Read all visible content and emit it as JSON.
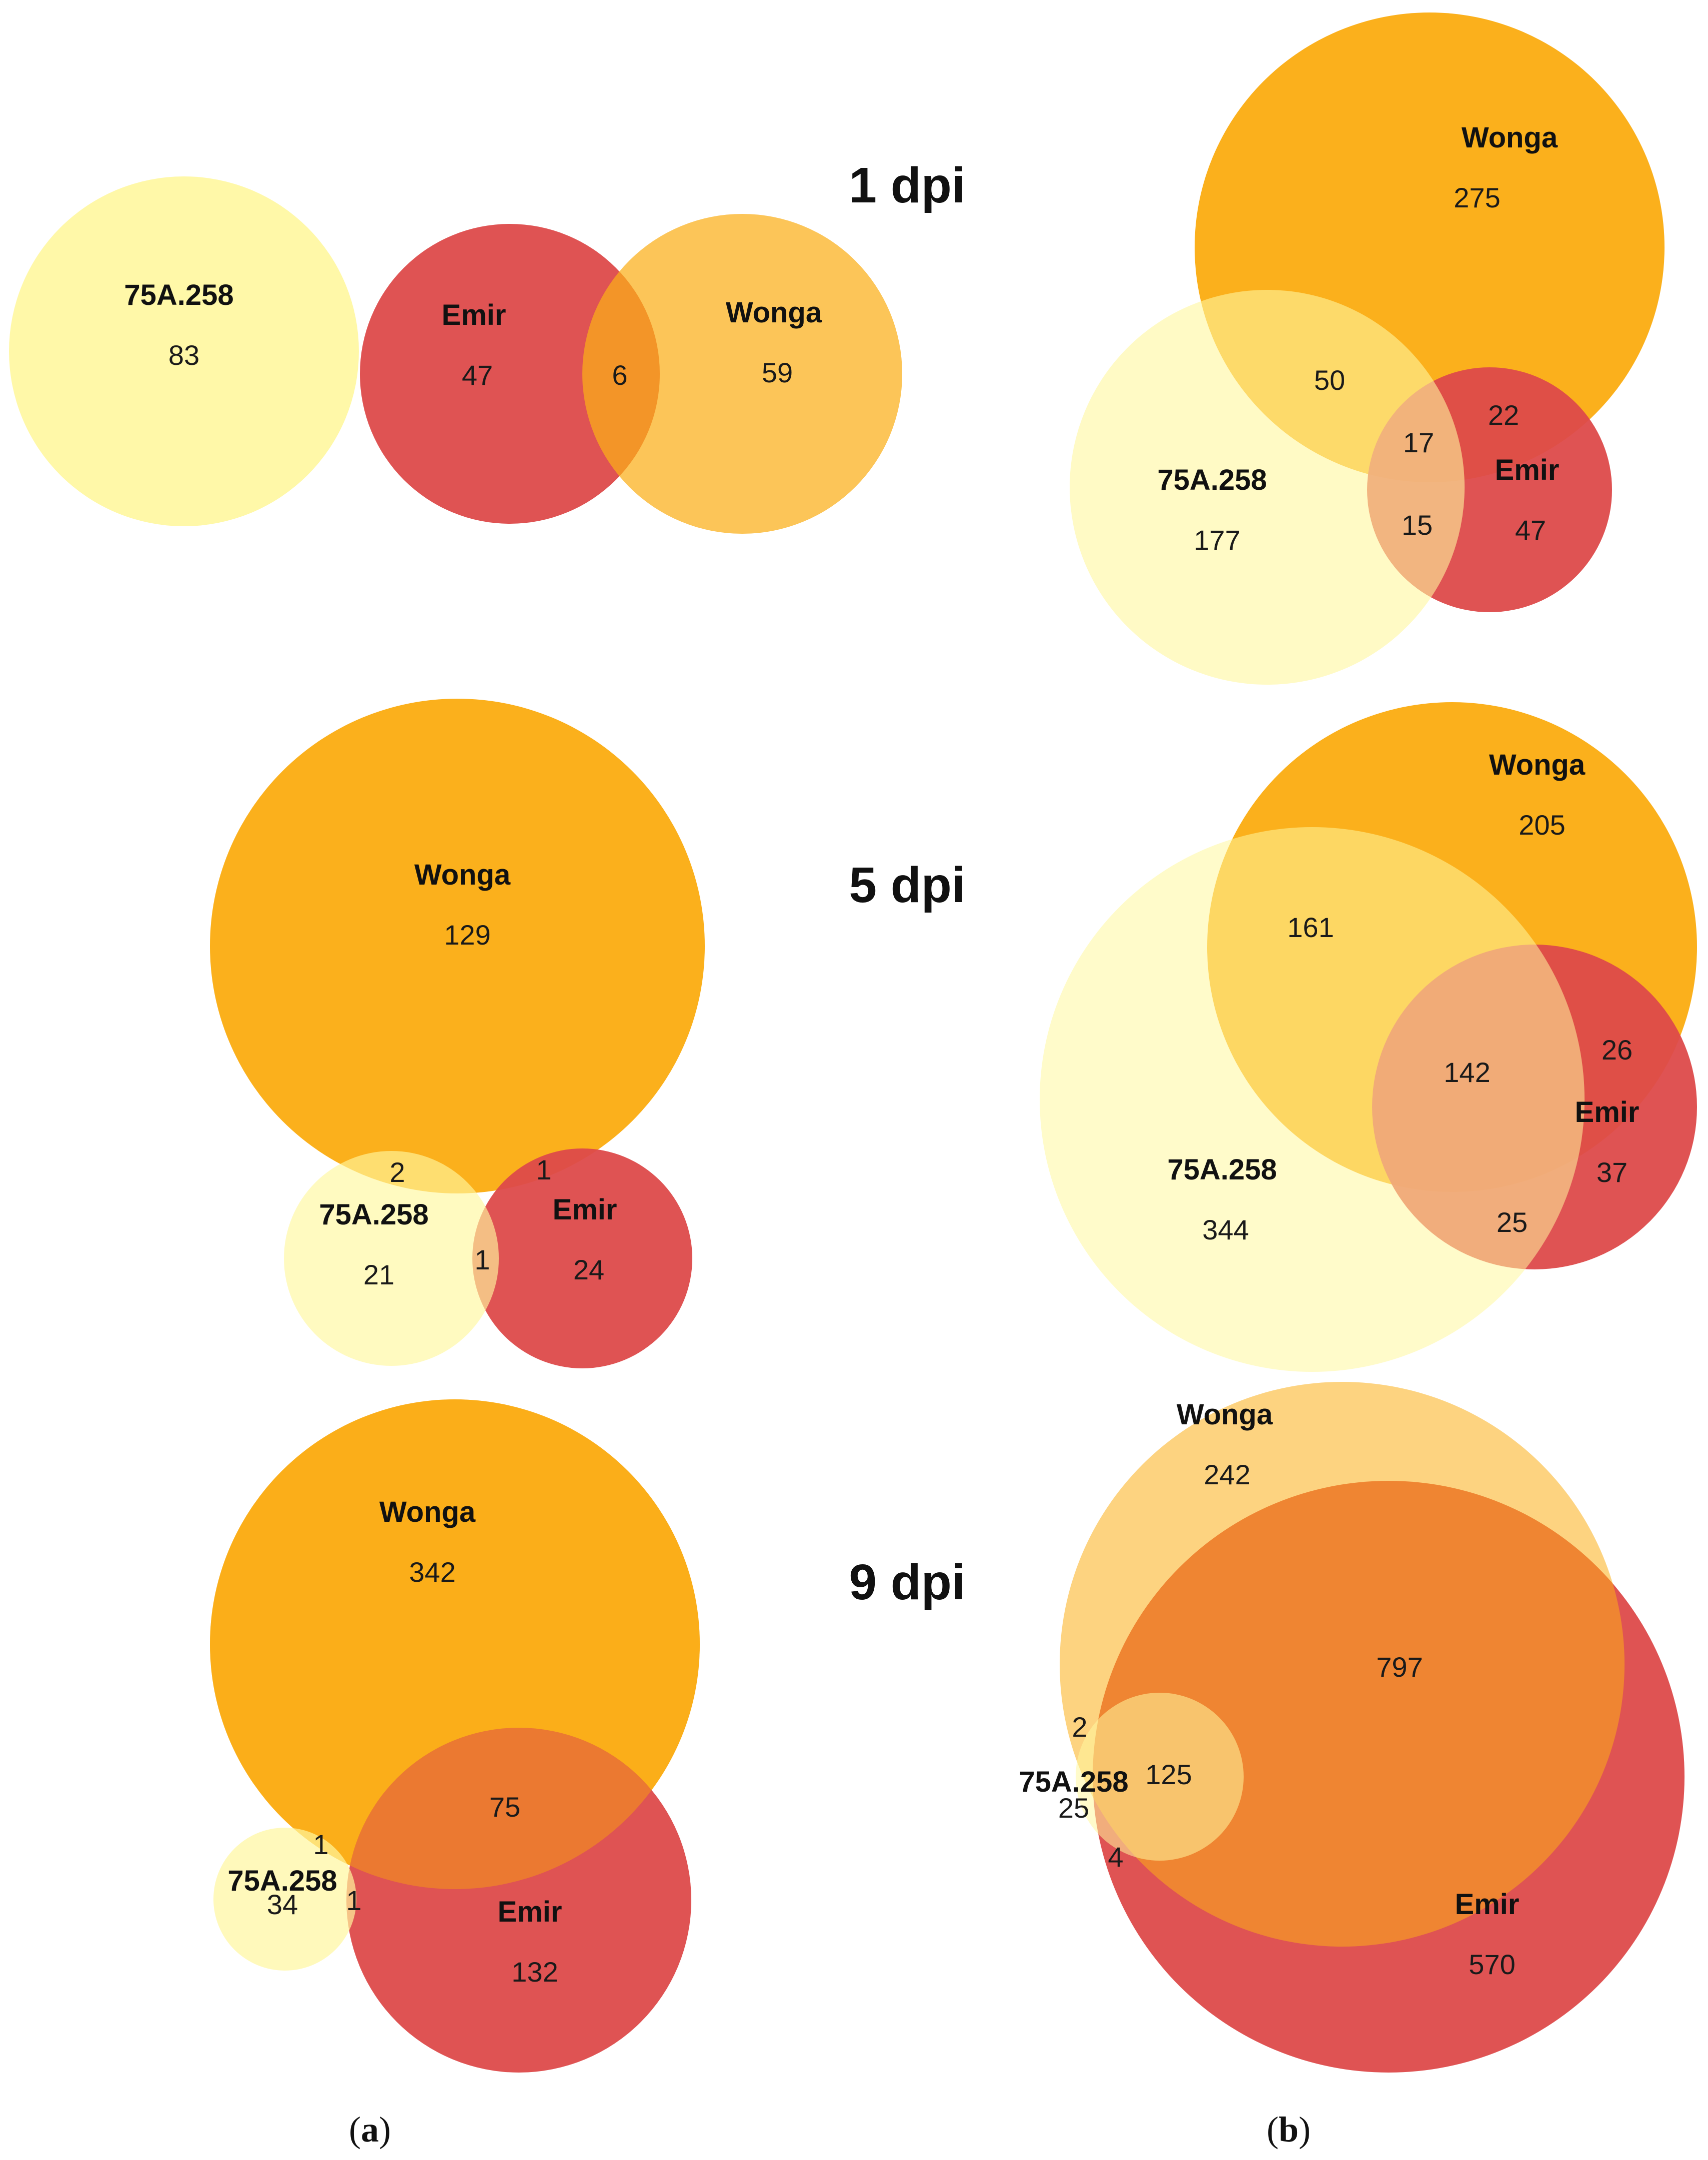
{
  "colors": {
    "wonga": "#FBAE17",
    "emir": "#DD4A4A",
    "line75": "#FFF79E",
    "text": "#111111"
  },
  "time_points": [
    "1 dpi",
    "5 dpi",
    "9 dpi"
  ],
  "panel_labels": {
    "a": {
      "open": "(",
      "letter": "a",
      "close": ")"
    },
    "b": {
      "open": "(",
      "letter": "b",
      "close": ")"
    }
  },
  "sets": {
    "line75": "75A.258",
    "emir": "Emir",
    "wonga": "Wonga"
  },
  "diagrams": [
    {
      "id": "a-1dpi",
      "panel": "a",
      "time": "1 dpi",
      "set_labels": [
        "75A.258",
        "Emir",
        "Wonga"
      ],
      "regions": [
        {
          "name": "75A.258 only",
          "value": "83"
        },
        {
          "name": "Emir only",
          "value": "47"
        },
        {
          "name": "Emir and Wonga",
          "value": "6"
        },
        {
          "name": "Wonga only",
          "value": "59"
        }
      ]
    },
    {
      "id": "b-1dpi",
      "panel": "b",
      "time": "1 dpi",
      "set_labels": [
        "Wonga",
        "75A.258",
        "Emir"
      ],
      "regions": [
        {
          "name": "Wonga only",
          "value": "275"
        },
        {
          "name": "75A.258 and Wonga",
          "value": "50"
        },
        {
          "name": "Wonga and Emir",
          "value": "22"
        },
        {
          "name": "All three",
          "value": "17"
        },
        {
          "name": "75A.258 only",
          "value": "177"
        },
        {
          "name": "75A.258 and Emir",
          "value": "15"
        },
        {
          "name": "Emir only",
          "value": "47"
        }
      ]
    },
    {
      "id": "a-5dpi",
      "panel": "a",
      "time": "5 dpi",
      "set_labels": [
        "Wonga",
        "75A.258",
        "Emir"
      ],
      "regions": [
        {
          "name": "Wonga only",
          "value": "129"
        },
        {
          "name": "75A.258 and Wonga",
          "value": "2"
        },
        {
          "name": "Wonga and Emir",
          "value": "1"
        },
        {
          "name": "75A.258 only",
          "value": "21"
        },
        {
          "name": "75A.258 and Emir",
          "value": "1"
        },
        {
          "name": "Emir only",
          "value": "24"
        }
      ]
    },
    {
      "id": "b-5dpi",
      "panel": "b",
      "time": "5 dpi",
      "set_labels": [
        "Wonga",
        "Emir",
        "75A.258"
      ],
      "regions": [
        {
          "name": "Wonga only",
          "value": "205"
        },
        {
          "name": "75A.258 and Wonga",
          "value": "161"
        },
        {
          "name": "All three",
          "value": "142"
        },
        {
          "name": "Wonga and Emir",
          "value": "26"
        },
        {
          "name": "Emir only",
          "value": "37"
        },
        {
          "name": "75A.258 only",
          "value": "344"
        },
        {
          "name": "75A.258 and Emir",
          "value": "25"
        }
      ]
    },
    {
      "id": "a-9dpi",
      "panel": "a",
      "time": "9 dpi",
      "set_labels": [
        "Wonga",
        "75A.258",
        "Emir"
      ],
      "regions": [
        {
          "name": "Wonga only",
          "value": "342"
        },
        {
          "name": "Wonga and Emir",
          "value": "75"
        },
        {
          "name": "75A.258 and Wonga",
          "value": "1"
        },
        {
          "name": "75A.258 only",
          "value": "34"
        },
        {
          "name": "75A.258 and Emir",
          "value": "1"
        },
        {
          "name": "Emir only",
          "value": "132"
        }
      ]
    },
    {
      "id": "b-9dpi",
      "panel": "b",
      "time": "9 dpi",
      "set_labels": [
        "Wonga",
        "75A.258",
        "Emir"
      ],
      "regions": [
        {
          "name": "Wonga only",
          "value": "242"
        },
        {
          "name": "Wonga and Emir",
          "value": "797"
        },
        {
          "name": "75A.258 and Wonga",
          "value": "2"
        },
        {
          "name": "All three",
          "value": "125"
        },
        {
          "name": "75A.258 only",
          "value": "25"
        },
        {
          "name": "75A.258 and Emir",
          "value": "4"
        },
        {
          "name": "Emir only",
          "value": "570"
        }
      ]
    }
  ]
}
